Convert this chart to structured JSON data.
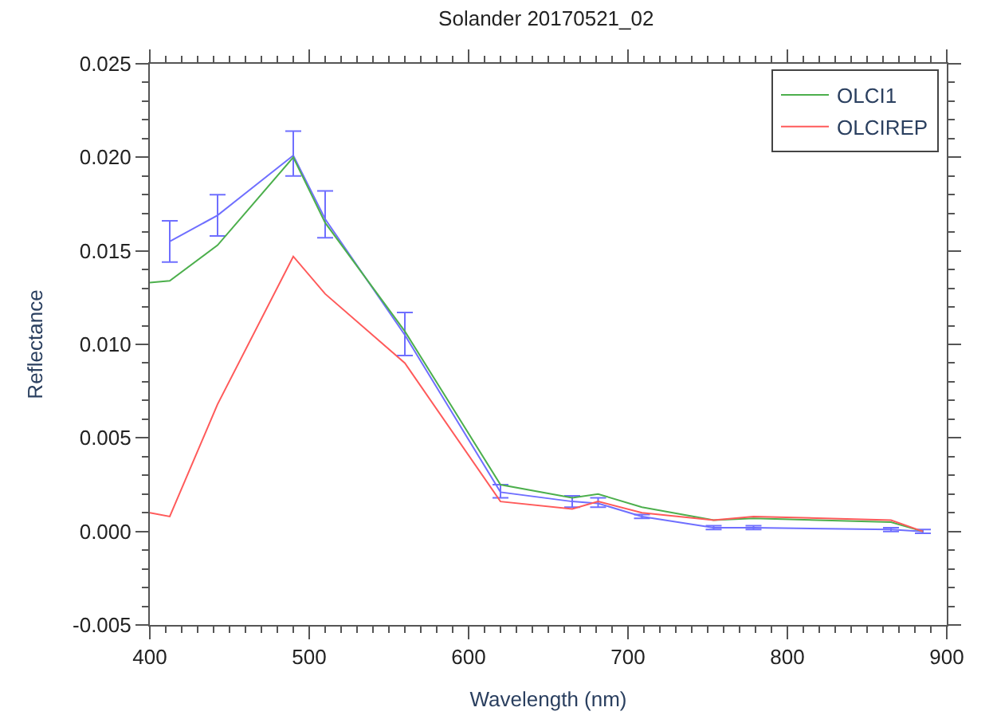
{
  "chart_data": {
    "type": "line",
    "title": "Solander 20170521_02",
    "xlabel": "Wavelength (nm)",
    "ylabel": "Reflectance",
    "xlim": [
      400,
      900
    ],
    "xticks": [
      400,
      500,
      600,
      700,
      800,
      900
    ],
    "ylim": [
      -0.005,
      0.025
    ],
    "yticks": [
      {
        "value": -0.005,
        "label": "-0.005"
      },
      {
        "value": 0,
        "label": "0.000"
      },
      {
        "value": 0.005,
        "label": "0.005"
      },
      {
        "value": 0.01,
        "label": "0.010"
      },
      {
        "value": 0.015,
        "label": "0.015"
      },
      {
        "value": 0.02,
        "label": "0.020"
      },
      {
        "value": 0.025,
        "label": "0.025"
      }
    ],
    "legend": "top right",
    "marker": "none",
    "line_style": "solid",
    "series": [
      {
        "color": "#6f6fff",
        "x": [
          412.5,
          442.5,
          490,
          510,
          560,
          620,
          665,
          681.25,
          708.75,
          753.75,
          778.75,
          865,
          885
        ],
        "values": [
          0.0155,
          0.0169,
          0.0201,
          0.0167,
          0.0105,
          0.0021,
          0.0016,
          0.0015,
          0.0008,
          0.0002,
          0.0002,
          0.0001,
          0.0
        ],
        "errors": [
          [
            0.0144,
            0.0166
          ],
          [
            0.0158,
            0.018
          ],
          [
            0.019,
            0.0214
          ],
          [
            0.0157,
            0.0182
          ],
          [
            0.0094,
            0.0117
          ],
          [
            0.0018,
            0.0025
          ],
          [
            0.0013,
            0.0019
          ],
          [
            0.0013,
            0.0018
          ],
          [
            0.0007,
            0.0009
          ],
          [
            0.0001,
            0.0003
          ],
          [
            0.0001,
            0.0003
          ],
          [
            0.0,
            0.0002
          ],
          [
            -0.0001,
            0.0001
          ]
        ]
      },
      {
        "name": "OLCI1",
        "color": "#4caf4c",
        "x": [
          400,
          412.5,
          442.5,
          490,
          510,
          560,
          620,
          665,
          681.25,
          708.75,
          753.75,
          778.75,
          865,
          885
        ],
        "values": [
          0.0133,
          0.0134,
          0.0153,
          0.02,
          0.0165,
          0.0107,
          0.0025,
          0.0018,
          0.002,
          0.0013,
          0.0006,
          0.0007,
          0.0005,
          0.0
        ]
      },
      {
        "name": "OLCIREP",
        "color": "#ff5a5a",
        "x": [
          400,
          412.5,
          442.5,
          490,
          510,
          560,
          620,
          665,
          681.25,
          708.75,
          753.75,
          778.75,
          865,
          885
        ],
        "values": [
          0.001,
          0.0008,
          0.0068,
          0.0147,
          0.0127,
          0.009,
          0.0016,
          0.0012,
          0.0016,
          0.001,
          0.0006,
          0.0008,
          0.0006,
          0.0
        ]
      }
    ]
  }
}
